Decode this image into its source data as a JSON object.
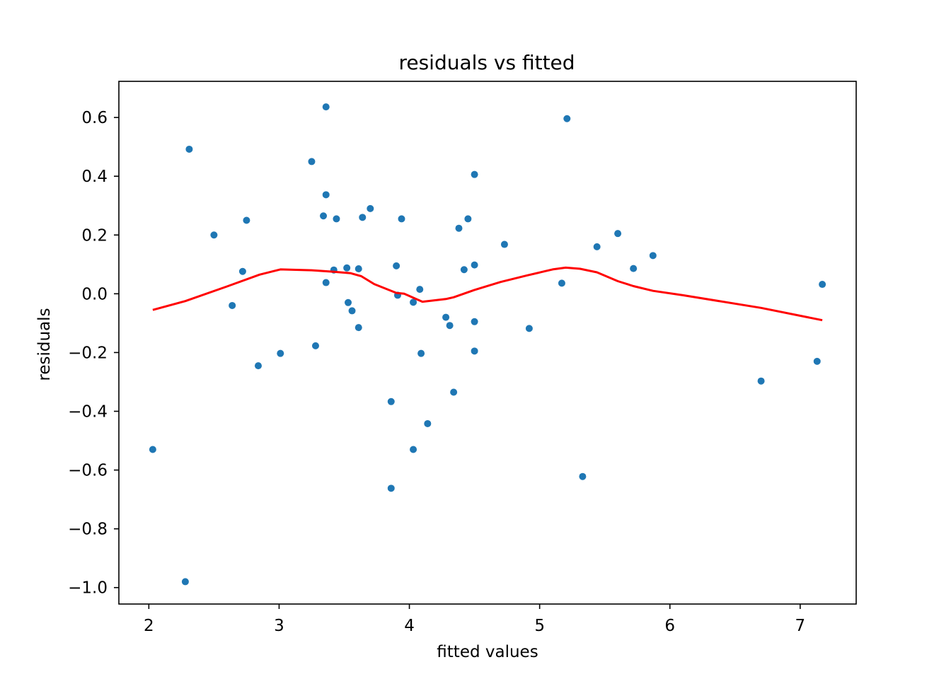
{
  "chart_data": {
    "type": "scatter",
    "title": "residuals vs fitted",
    "xlabel": "fitted values",
    "ylabel": "residuals",
    "xlim": [
      1.77,
      7.43
    ],
    "ylim": [
      -1.056,
      0.723
    ],
    "xticks": [
      2,
      3,
      4,
      5,
      6,
      7
    ],
    "xtick_labels": [
      "2",
      "3",
      "4",
      "5",
      "6",
      "7"
    ],
    "yticks": [
      0.6,
      0.4,
      0.2,
      0.0,
      -0.2,
      -0.4,
      -0.6,
      -0.8,
      -1.0
    ],
    "ytick_labels": [
      "0.6",
      "0.4",
      "0.2",
      "0.0",
      "−0.2",
      "−0.4",
      "−0.6",
      "−0.8",
      "−1.0"
    ],
    "grid": false,
    "colors": {
      "points": "#1f77b4",
      "smooth_line": "#ff0000",
      "axes": "#000000"
    },
    "series": [
      {
        "kind": "points",
        "x": [
          2.03,
          2.28,
          2.31,
          2.5,
          2.64,
          2.72,
          2.75,
          2.84,
          3.01,
          3.25,
          3.28,
          3.34,
          3.36,
          3.36,
          3.36,
          3.42,
          3.44,
          3.52,
          3.53,
          3.56,
          3.61,
          3.61,
          3.64,
          3.7,
          3.86,
          3.86,
          3.9,
          3.91,
          3.94,
          4.03,
          4.03,
          4.08,
          4.09,
          4.14,
          4.28,
          4.31,
          4.34,
          4.38,
          4.42,
          4.45,
          4.5,
          4.5,
          4.5,
          4.5,
          4.73,
          4.92,
          5.17,
          5.21,
          5.33,
          5.44,
          5.6,
          5.72,
          5.87,
          6.7,
          7.13,
          7.17
        ],
        "y": [
          -0.53,
          -0.98,
          0.492,
          0.2,
          -0.04,
          0.076,
          0.25,
          -0.245,
          -0.203,
          0.45,
          -0.177,
          0.265,
          0.636,
          0.337,
          0.038,
          0.081,
          0.255,
          0.088,
          -0.03,
          -0.058,
          -0.115,
          0.085,
          0.26,
          0.29,
          -0.367,
          -0.662,
          0.095,
          -0.005,
          0.255,
          -0.029,
          -0.53,
          0.015,
          -0.203,
          -0.442,
          -0.08,
          -0.108,
          -0.335,
          0.223,
          0.082,
          0.255,
          0.406,
          0.098,
          -0.095,
          -0.195,
          0.168,
          -0.118,
          0.036,
          0.596,
          -0.622,
          0.16,
          0.205,
          0.086,
          0.13,
          -0.297,
          -0.23,
          0.032
        ]
      },
      {
        "kind": "smooth-line",
        "x": [
          2.03,
          2.28,
          2.6,
          2.85,
          3.01,
          3.25,
          3.42,
          3.55,
          3.63,
          3.73,
          3.9,
          3.96,
          4.1,
          4.28,
          4.34,
          4.5,
          4.7,
          4.9,
          5.1,
          5.2,
          5.31,
          5.44,
          5.6,
          5.72,
          5.87,
          6.1,
          6.7,
          7.17
        ],
        "y": [
          -0.055,
          -0.025,
          0.025,
          0.065,
          0.083,
          0.08,
          0.075,
          0.07,
          0.06,
          0.033,
          0.003,
          0.0,
          -0.027,
          -0.018,
          -0.012,
          0.013,
          0.04,
          0.062,
          0.083,
          0.089,
          0.085,
          0.073,
          0.043,
          0.026,
          0.01,
          -0.005,
          -0.048,
          -0.09
        ]
      }
    ]
  }
}
